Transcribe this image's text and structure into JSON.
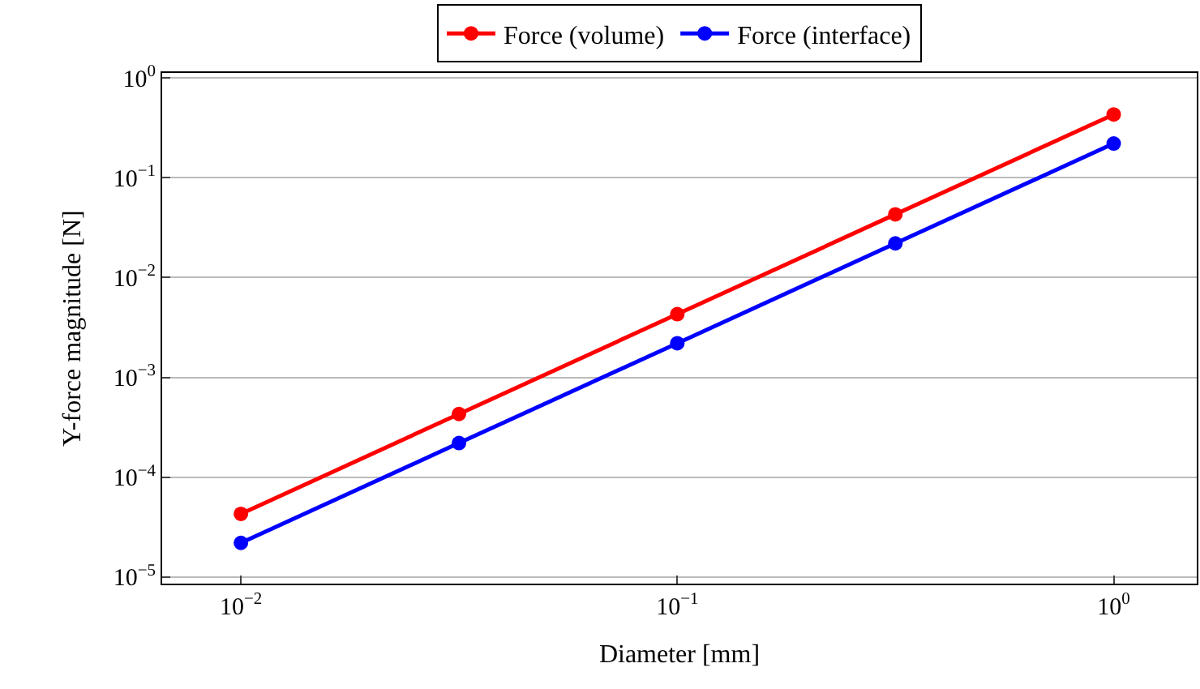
{
  "chart_data": {
    "type": "line",
    "xlabel": "Diameter [mm]",
    "ylabel": "Y-force magnitude [N]",
    "x": [
      0.01,
      0.0316,
      0.1,
      0.316,
      1
    ],
    "series": [
      {
        "name": "Force (volume)",
        "color": "#ff0000",
        "values": [
          4.3e-05,
          0.00043,
          0.0043,
          0.043,
          0.43
        ]
      },
      {
        "name": "Force (interface)",
        "color": "#0000ff",
        "values": [
          2.2e-05,
          0.00022,
          0.0022,
          0.022,
          0.22
        ]
      }
    ],
    "log": "xy",
    "xlim": [
      0.0066,
      1.55
    ],
    "ylim": [
      8.6e-06,
      1.12
    ],
    "xticks": [
      {
        "value": 0.01,
        "label": "10$^{−2}$"
      },
      {
        "value": 0.1,
        "label": "10$^{−1}$"
      },
      {
        "value": 1,
        "label": "10$^{0}$"
      }
    ],
    "yticks": [
      {
        "value": 1e-05,
        "label": "10$^{−5}$"
      },
      {
        "value": 0.0001,
        "label": "10$^{−4}$"
      },
      {
        "value": 0.001,
        "label": "10$^{−3}$"
      },
      {
        "value": 0.01,
        "label": "10$^{−2}$"
      },
      {
        "value": 0.1,
        "label": "10$^{−1}$"
      },
      {
        "value": 1,
        "label": "10$^{0}$"
      }
    ],
    "grid": "y",
    "legend": "top",
    "marker": "circle",
    "line_style": "solid"
  }
}
